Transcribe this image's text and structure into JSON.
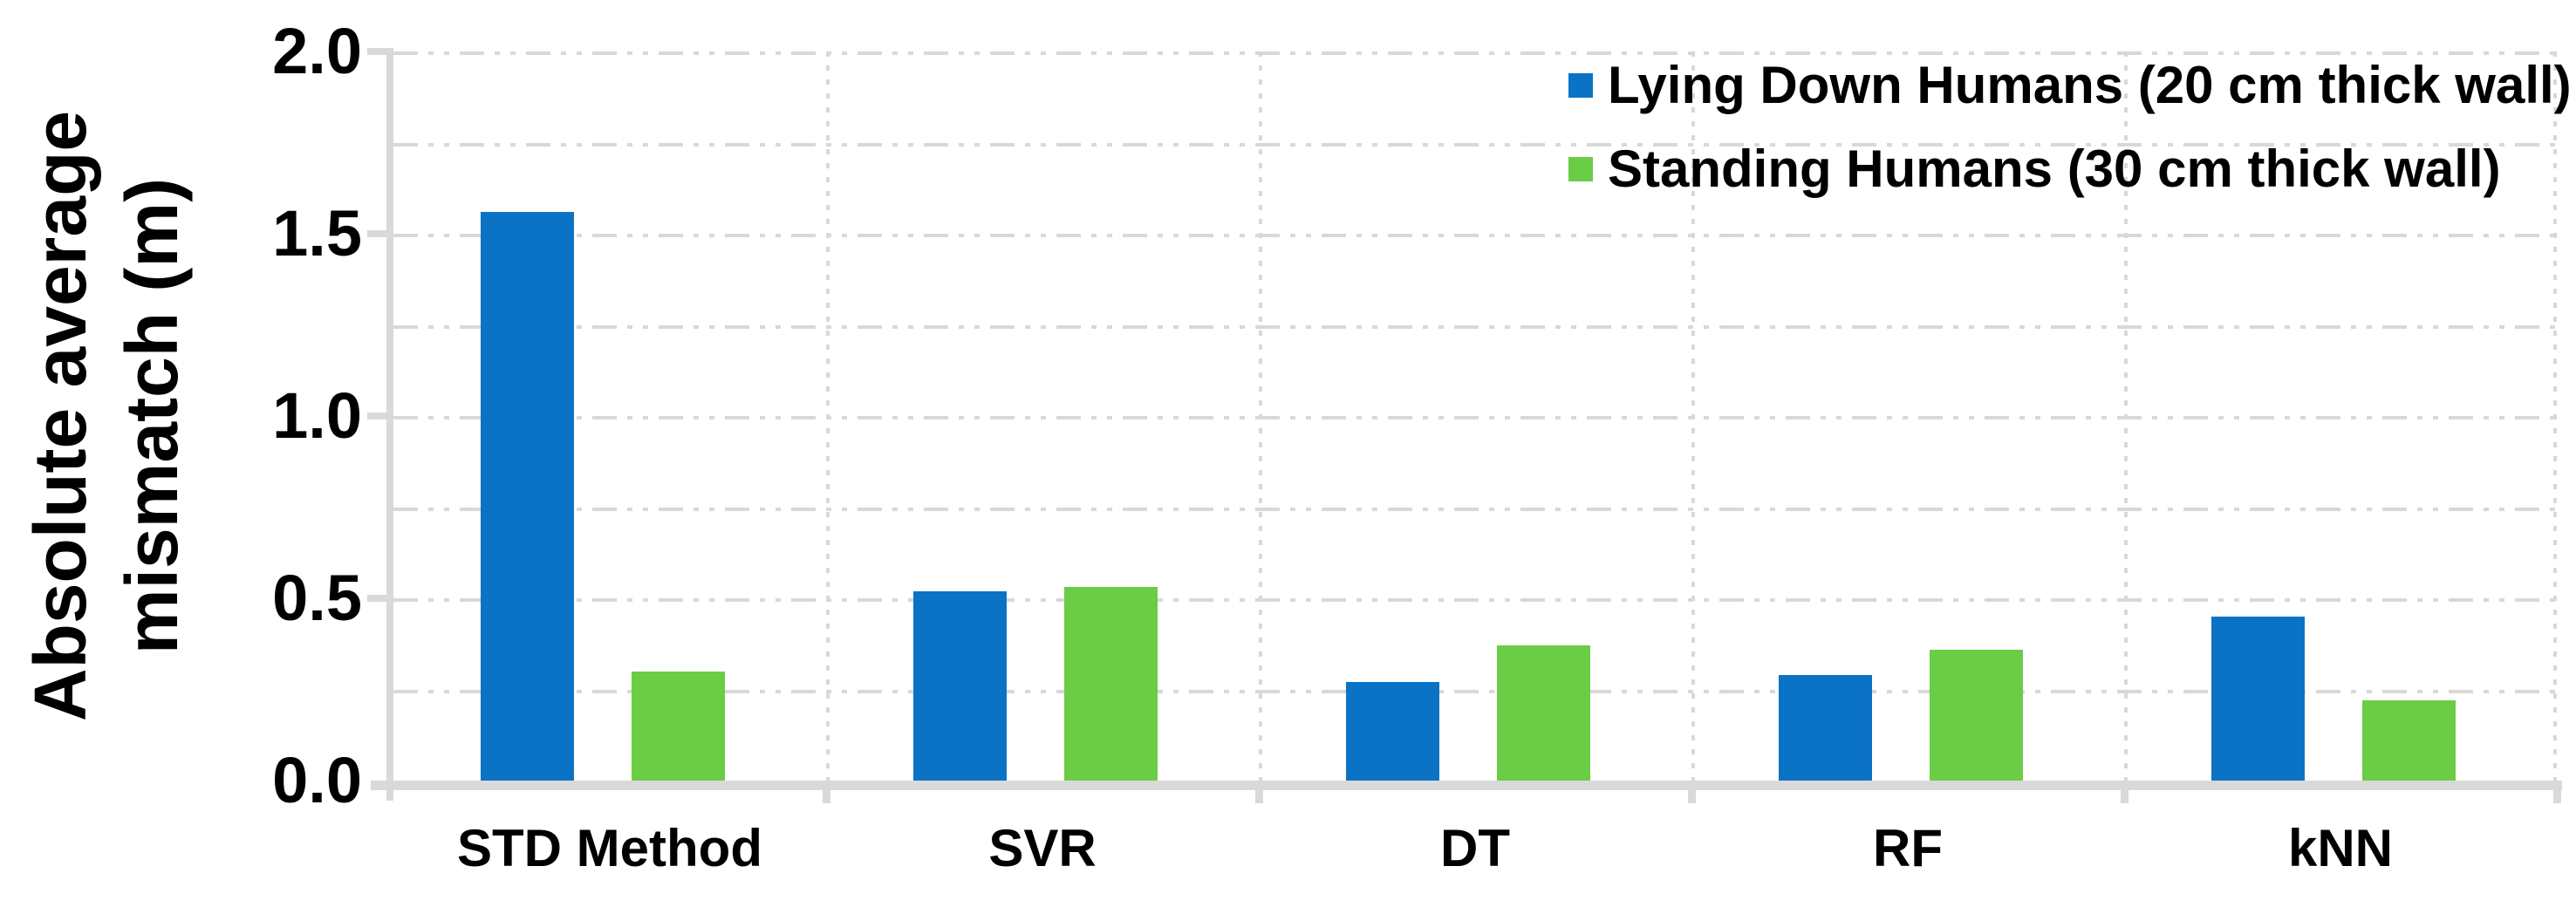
{
  "chart_data": {
    "type": "bar",
    "title": "",
    "categories": [
      "STD Method",
      "SVR",
      "DT",
      "RF",
      "kNN"
    ],
    "series": [
      {
        "name": "Lying Down Humans (20 cm thick wall)",
        "color": "#0B73C5",
        "values": [
          1.56,
          0.52,
          0.27,
          0.29,
          0.45
        ]
      },
      {
        "name": "Standing Humans (30 cm thick wall)",
        "color": "#6BCC45",
        "values": [
          0.3,
          0.53,
          0.37,
          0.36,
          0.22
        ]
      }
    ],
    "ylabel_line1": "Absolute average",
    "ylabel_line2": "mismatch (m)",
    "xlabel": "",
    "ylim": [
      0.0,
      2.0
    ],
    "ytick_labels": [
      "2.0",
      "1.5",
      "1.0",
      "0.5",
      "0.0"
    ],
    "ytick_values": [
      2.0,
      1.5,
      1.0,
      0.5,
      0.0
    ],
    "grid": {
      "horizontal_step": 0.25,
      "vertical": "category-boundaries",
      "style": "dashed",
      "color": "#D8D8D8"
    },
    "axis_color": "#D9D9D9",
    "legend_position": "top-right"
  }
}
